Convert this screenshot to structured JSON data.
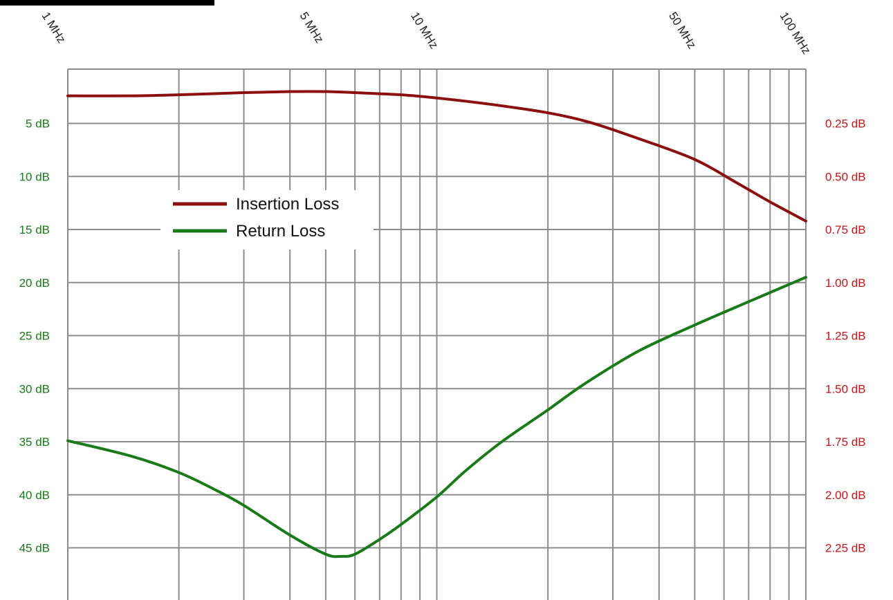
{
  "chart_data": {
    "type": "line",
    "xscale": "log",
    "xlim_mhz": [
      1,
      100
    ],
    "x_tick_labels": [
      {
        "value": 1,
        "label": "1 MHz"
      },
      {
        "value": 5,
        "label": "5 MHz"
      },
      {
        "value": 10,
        "label": "10 MHz"
      },
      {
        "value": 50,
        "label": "50 MHz"
      },
      {
        "value": 100,
        "label": "100 MHz"
      }
    ],
    "y_left": {
      "color": "#1a7a1a",
      "min": 0,
      "max": 50,
      "inverted": true,
      "ticks": [
        {
          "value": 5,
          "label": "5 dB"
        },
        {
          "value": 10,
          "label": "10 dB"
        },
        {
          "value": 15,
          "label": "15 dB"
        },
        {
          "value": 20,
          "label": "20 dB"
        },
        {
          "value": 25,
          "label": "25 dB"
        },
        {
          "value": 30,
          "label": "30 dB"
        },
        {
          "value": 35,
          "label": "35 dB"
        },
        {
          "value": 40,
          "label": "40 dB"
        },
        {
          "value": 45,
          "label": "45 dB"
        }
      ]
    },
    "y_right": {
      "color": "#c01818",
      "min": 0,
      "max": 2.5,
      "inverted": true,
      "ticks": [
        {
          "value": 0.25,
          "label": "0.25 dB"
        },
        {
          "value": 0.5,
          "label": "0.50 dB"
        },
        {
          "value": 0.75,
          "label": "0.75 dB"
        },
        {
          "value": 1.0,
          "label": "1.00 dB"
        },
        {
          "value": 1.25,
          "label": "1.25 dB"
        },
        {
          "value": 1.5,
          "label": "1.50 dB"
        },
        {
          "value": 1.75,
          "label": "1.75 dB"
        },
        {
          "value": 2.0,
          "label": "2.00 dB"
        },
        {
          "value": 2.25,
          "label": "2.25 dB"
        }
      ]
    },
    "grid": true,
    "legend": {
      "placement": "upper-left",
      "entries": [
        {
          "name": "Insertion Loss",
          "color": "#8b0f0f"
        },
        {
          "name": "Return Loss",
          "color": "#1a7a1a"
        }
      ]
    },
    "series": [
      {
        "name": "Insertion Loss",
        "axis": "right",
        "color": "#8b0f0f",
        "x": [
          1,
          1.5,
          2,
          3,
          4,
          5,
          6,
          8,
          10,
          14,
          20,
          26,
          35,
          50,
          65,
          80,
          100
        ],
        "y": [
          0.12,
          0.12,
          0.115,
          0.105,
          0.1,
          0.1,
          0.105,
          0.115,
          0.13,
          0.16,
          0.2,
          0.245,
          0.32,
          0.42,
          0.53,
          0.62,
          0.71
        ]
      },
      {
        "name": "Return Loss",
        "axis": "left",
        "color": "#1a7a1a",
        "x": [
          1,
          1.5,
          2,
          2.5,
          3,
          4,
          5,
          5.5,
          6,
          7,
          8,
          10,
          12,
          15,
          20,
          25,
          35,
          50,
          70,
          100
        ],
        "y": [
          34.9,
          36.4,
          37.9,
          39.5,
          41.0,
          43.8,
          45.6,
          45.8,
          45.6,
          44.2,
          42.8,
          40.2,
          37.7,
          35.0,
          32.0,
          29.6,
          26.5,
          24.0,
          21.8,
          19.5
        ]
      }
    ]
  }
}
